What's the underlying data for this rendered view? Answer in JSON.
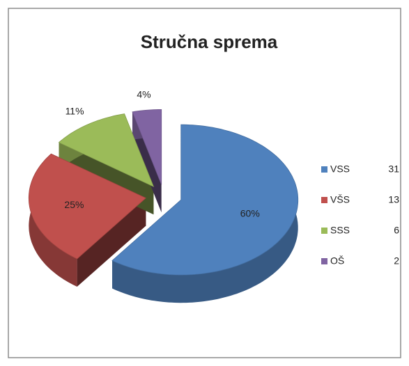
{
  "chart_data": {
    "type": "pie3d",
    "title": "Stručna sprema",
    "categories": [
      "VSS",
      "VŠS",
      "SSS",
      "OŠ"
    ],
    "values": [
      60,
      25,
      11,
      4
    ],
    "value_labels": [
      "60%",
      "25%",
      "11%",
      "4%"
    ],
    "counts": [
      31,
      13,
      6,
      2
    ],
    "colors": [
      "#4f81bd",
      "#c0504d",
      "#9bbb59",
      "#8064a2"
    ],
    "legend": "right"
  }
}
